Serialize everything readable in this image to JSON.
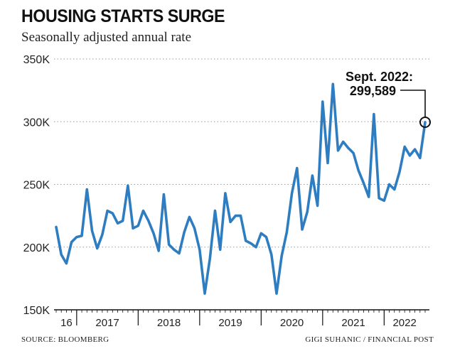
{
  "title": "HOUSING STARTS SURGE",
  "subtitle": "Seasonally adjusted annual rate",
  "source": "SOURCE: BLOOMBERG",
  "credit": "GIGI SUHANIC / FINANCIAL POST",
  "colors": {
    "line": "#2f7dc1",
    "text": "#111111",
    "grid": "#9a9a9a"
  },
  "chart_data": {
    "type": "line",
    "title": "HOUSING STARTS SURGE",
    "subtitle": "Seasonally adjusted annual rate",
    "xlabel": "",
    "ylabel": "",
    "ylim": [
      150000,
      350000
    ],
    "yticks": [
      150000,
      200000,
      250000,
      300000,
      350000
    ],
    "ytick_labels": [
      "150K",
      "200K",
      "250K",
      "300K",
      "350K"
    ],
    "grid": "horizontal dotted",
    "x_range": [
      "2016-09",
      "2022-09"
    ],
    "year_labels": [
      {
        "label": "16",
        "year_start": "2016-09"
      },
      {
        "label": "2017",
        "year_start": "2017-01"
      },
      {
        "label": "2018",
        "year_start": "2018-01"
      },
      {
        "label": "2019",
        "year_start": "2019-01"
      },
      {
        "label": "2020",
        "year_start": "2020-01"
      },
      {
        "label": "2021",
        "year_start": "2021-01"
      },
      {
        "label": "2022",
        "year_start": "2022-01"
      }
    ],
    "series": [
      {
        "x": [
          "2016-09",
          "2016-10",
          "2016-11",
          "2016-12",
          "2017-01",
          "2017-02",
          "2017-03",
          "2017-04",
          "2017-05",
          "2017-06",
          "2017-07",
          "2017-08",
          "2017-09",
          "2017-10",
          "2017-11",
          "2017-12",
          "2018-01",
          "2018-02",
          "2018-03",
          "2018-04",
          "2018-05",
          "2018-06",
          "2018-07",
          "2018-08",
          "2018-09",
          "2018-10",
          "2018-11",
          "2018-12",
          "2019-01",
          "2019-02",
          "2019-03",
          "2019-04",
          "2019-05",
          "2019-06",
          "2019-07",
          "2019-08",
          "2019-09",
          "2019-10",
          "2019-11",
          "2019-12",
          "2020-01",
          "2020-02",
          "2020-03",
          "2020-04",
          "2020-05",
          "2020-06",
          "2020-07",
          "2020-08",
          "2020-09",
          "2020-10",
          "2020-11",
          "2020-12",
          "2021-01",
          "2021-02",
          "2021-03",
          "2021-04",
          "2021-05",
          "2021-06",
          "2021-07",
          "2021-08",
          "2021-09",
          "2021-10",
          "2021-11",
          "2021-12",
          "2022-01",
          "2022-02",
          "2022-03",
          "2022-04",
          "2022-05",
          "2022-06",
          "2022-07",
          "2022-08",
          "2022-09"
        ],
        "y": [
          216000,
          194000,
          187000,
          204000,
          208000,
          209000,
          246000,
          213000,
          199000,
          210000,
          229000,
          227000,
          219000,
          221000,
          249000,
          215000,
          217000,
          229000,
          221000,
          211000,
          197000,
          242000,
          202000,
          198000,
          195000,
          212000,
          224000,
          215000,
          198000,
          163000,
          191000,
          229000,
          198000,
          243000,
          220000,
          225000,
          225000,
          205000,
          203000,
          200000,
          211000,
          208000,
          194000,
          163000,
          193000,
          212000,
          243000,
          263000,
          214000,
          228000,
          257000,
          233000,
          316000,
          267000,
          330000,
          277000,
          284000,
          279000,
          275000,
          261000,
          251000,
          240000,
          306000,
          239000,
          237000,
          250000,
          246000,
          260000,
          280000,
          273000,
          278000,
          271000,
          299589
        ]
      }
    ],
    "annotations": [
      {
        "text_line1": "Sept. 2022:",
        "text_line2": "299,589",
        "x": "2022-09",
        "y": 299589
      }
    ]
  }
}
